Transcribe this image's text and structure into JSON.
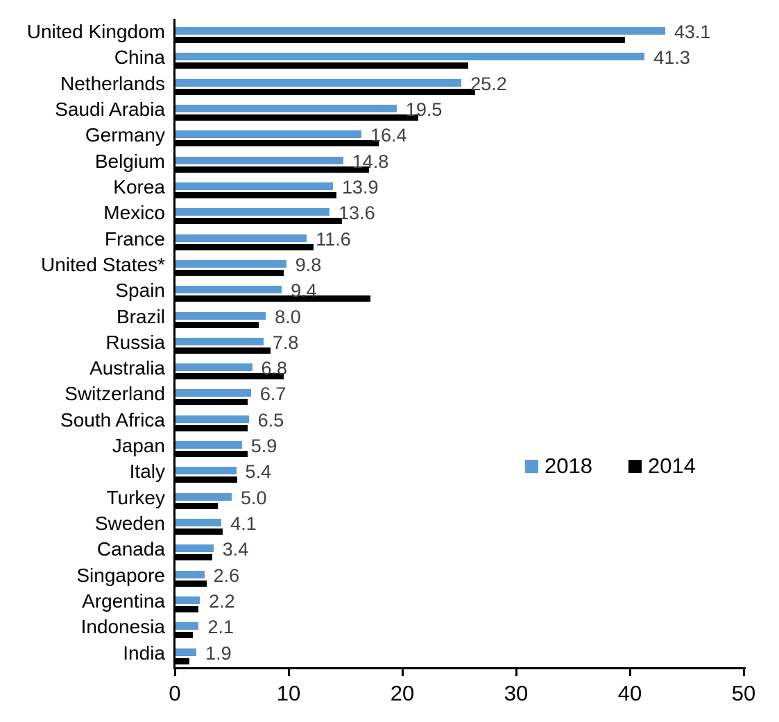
{
  "chart_data": {
    "type": "bar",
    "orientation": "horizontal",
    "categories": [
      "United Kingdom",
      "China",
      "Netherlands",
      "Saudi Arabia",
      "Germany",
      "Belgium",
      "Korea",
      "Mexico",
      "France",
      "United States*",
      "Spain",
      "Brazil",
      "Russia",
      "Australia",
      "Switzerland",
      "South Africa",
      "Japan",
      "Italy",
      "Turkey",
      "Sweden",
      "Canada",
      "Singapore",
      "Argentina",
      "Indonesia",
      "India"
    ],
    "series": [
      {
        "name": "2018",
        "color": "#5B9BD5",
        "labels_shown": true,
        "values": [
          43.1,
          41.3,
          25.2,
          19.5,
          16.4,
          14.8,
          13.9,
          13.6,
          11.6,
          9.8,
          9.4,
          8.0,
          7.8,
          6.8,
          6.7,
          6.5,
          5.9,
          5.4,
          5.0,
          4.1,
          3.4,
          2.6,
          2.2,
          2.1,
          1.9
        ],
        "data_labels": [
          "43.1",
          "41.3",
          "25.2",
          "19.5",
          "16.4",
          "14.8",
          "13.9",
          "13.6",
          "11.6",
          "9.8",
          "9.4",
          "8.0",
          "7.8",
          "6.8",
          "6.7",
          "6.5",
          "5.9",
          "5.4",
          "5.0",
          "4.1",
          "3.4",
          "2.6",
          "2.2",
          "2.1",
          "1.9"
        ]
      },
      {
        "name": "2014",
        "color": "#000000",
        "labels_shown": false,
        "values": [
          39.6,
          25.8,
          26.4,
          21.4,
          17.9,
          17.1,
          14.2,
          14.7,
          12.2,
          9.6,
          17.2,
          7.4,
          8.4,
          9.6,
          6.4,
          6.4,
          6.4,
          5.5,
          3.8,
          4.2,
          3.3,
          2.8,
          2.1,
          1.6,
          1.3
        ]
      }
    ],
    "xlim": [
      0,
      50
    ],
    "x_ticks": [
      "0",
      "10",
      "20",
      "30",
      "40",
      "50"
    ],
    "grid": false,
    "legend": {
      "position": "inside-middle-right",
      "entries": [
        "2018",
        "2014"
      ]
    },
    "colors": {
      "series_2018": "#5B9BD5",
      "series_2014": "#000000",
      "value_label": "#404040",
      "axis": "#000000"
    }
  }
}
